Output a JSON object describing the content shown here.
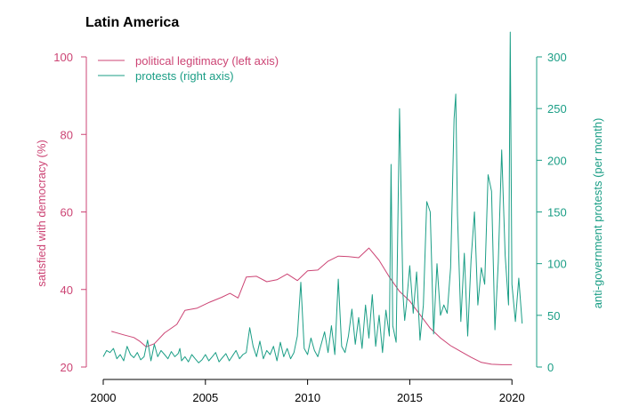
{
  "colors": {
    "legitimacy": "#cc4474",
    "protests": "#1b9e86",
    "axis": "#000000"
  },
  "chart_data": {
    "type": "line",
    "title": "Latin America",
    "xlabel": "",
    "xlim": [
      2000,
      2020.6
    ],
    "x_ticks": [
      2000,
      2005,
      2010,
      2015,
      2020
    ],
    "y_left": {
      "label": "satisfied with democracy (%)",
      "lim": [
        20,
        100
      ],
      "ticks": [
        20,
        40,
        60,
        80,
        100
      ],
      "color": "#cc4474"
    },
    "y_right": {
      "label": "anti-government protests (per month)",
      "lim": [
        0,
        300
      ],
      "ticks": [
        0,
        50,
        100,
        150,
        200,
        250,
        300
      ],
      "color": "#1b9e86"
    },
    "legend": {
      "position": "top-left",
      "entries": [
        "political legitimacy (left axis)",
        "protests (right axis)"
      ]
    },
    "series": [
      {
        "name": "political legitimacy (left axis)",
        "axis": "left",
        "x": [
          2000.4,
          2001.0,
          2001.5,
          2001.8,
          2002.1,
          2002.5,
          2003.0,
          2003.6,
          2004.0,
          2004.6,
          2005.2,
          2005.8,
          2006.2,
          2006.6,
          2007.0,
          2007.5,
          2008.0,
          2008.5,
          2009.0,
          2009.5,
          2010.0,
          2010.5,
          2011.0,
          2011.5,
          2012.0,
          2012.5,
          2013.0,
          2013.5,
          2014.0,
          2014.5,
          2015.0,
          2015.5,
          2016.0,
          2016.5,
          2017.0,
          2017.5,
          2018.0,
          2018.5,
          2019.0,
          2019.5,
          2020.0
        ],
        "values": [
          29.2,
          28.3,
          27.6,
          26.6,
          25.2,
          26.0,
          28.8,
          31.0,
          34.6,
          35.2,
          36.7,
          38.0,
          39.0,
          37.8,
          43.2,
          43.4,
          42.0,
          42.5,
          44.0,
          42.3,
          44.8,
          45.0,
          47.3,
          48.6,
          48.5,
          48.2,
          50.7,
          47.5,
          43.2,
          39.5,
          37.0,
          33.5,
          30.0,
          27.5,
          25.5,
          24.0,
          22.5,
          21.2,
          20.7,
          20.6,
          20.6
        ]
      },
      {
        "name": "protests (right axis)",
        "axis": "right",
        "x": [
          2000.0,
          2000.167,
          2000.333,
          2000.5,
          2000.667,
          2000.833,
          2001.0,
          2001.167,
          2001.333,
          2001.5,
          2001.667,
          2001.833,
          2002.0,
          2002.167,
          2002.333,
          2002.5,
          2002.667,
          2002.833,
          2003.0,
          2003.167,
          2003.333,
          2003.5,
          2003.667,
          2003.75,
          2003.833,
          2004.0,
          2004.167,
          2004.333,
          2004.5,
          2004.667,
          2004.833,
          2005.0,
          2005.167,
          2005.333,
          2005.5,
          2005.667,
          2005.833,
          2006.0,
          2006.167,
          2006.333,
          2006.5,
          2006.667,
          2006.833,
          2007.0,
          2007.167,
          2007.333,
          2007.5,
          2007.667,
          2007.833,
          2008.0,
          2008.167,
          2008.333,
          2008.5,
          2008.667,
          2008.833,
          2009.0,
          2009.167,
          2009.333,
          2009.5,
          2009.667,
          2009.833,
          2010.0,
          2010.167,
          2010.333,
          2010.5,
          2010.667,
          2010.833,
          2011.0,
          2011.167,
          2011.333,
          2011.5,
          2011.667,
          2011.833,
          2012.0,
          2012.167,
          2012.333,
          2012.5,
          2012.667,
          2012.833,
          2013.0,
          2013.167,
          2013.333,
          2013.5,
          2013.667,
          2013.833,
          2014.0,
          2014.083,
          2014.167,
          2014.333,
          2014.5,
          2014.667,
          2014.75,
          2014.833,
          2015.0,
          2015.167,
          2015.333,
          2015.5,
          2015.667,
          2015.833,
          2016.0,
          2016.167,
          2016.333,
          2016.5,
          2016.667,
          2016.833,
          2017.0,
          2017.167,
          2017.25,
          2017.333,
          2017.5,
          2017.667,
          2017.833,
          2018.0,
          2018.167,
          2018.333,
          2018.5,
          2018.667,
          2018.833,
          2019.0,
          2019.167,
          2019.333,
          2019.5,
          2019.667,
          2019.833,
          2019.917,
          2020.0,
          2020.167,
          2020.333,
          2020.5
        ],
        "values": [
          10,
          16,
          14,
          18,
          8,
          12,
          6,
          20,
          12,
          9,
          14,
          7,
          10,
          26,
          6,
          22,
          10,
          16,
          12,
          8,
          15,
          10,
          13,
          18,
          6,
          10,
          5,
          12,
          8,
          4,
          7,
          12,
          6,
          10,
          14,
          5,
          9,
          13,
          6,
          11,
          16,
          8,
          12,
          14,
          38,
          20,
          10,
          25,
          8,
          16,
          12,
          20,
          6,
          24,
          10,
          18,
          8,
          14,
          30,
          82,
          18,
          12,
          28,
          16,
          10,
          22,
          34,
          14,
          40,
          12,
          85,
          20,
          14,
          30,
          56,
          22,
          48,
          18,
          60,
          28,
          70,
          20,
          50,
          14,
          55,
          30,
          196,
          40,
          24,
          250,
          70,
          45,
          60,
          98,
          52,
          92,
          26,
          60,
          160,
          150,
          32,
          100,
          50,
          60,
          52,
          96,
          240,
          264,
          148,
          44,
          110,
          30,
          104,
          150,
          60,
          96,
          80,
          186,
          170,
          36,
          102,
          210,
          108,
          60,
          324,
          80,
          44,
          86,
          42
        ]
      }
    ]
  }
}
